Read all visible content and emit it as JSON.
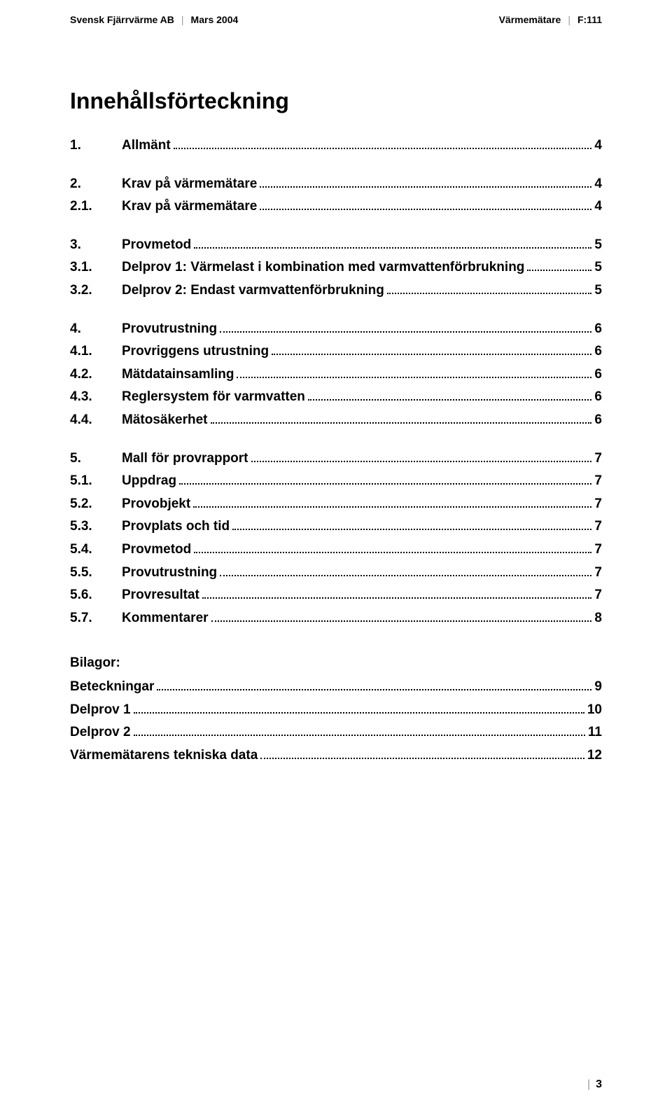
{
  "header": {
    "left_company": "Svensk Fjärrvärme AB",
    "left_date": "Mars 2004",
    "right_section": "Värmemätare",
    "right_code": "F:111"
  },
  "title": "Innehållsförteckning",
  "toc_groups": [
    [
      {
        "num": "1.",
        "label": "Allmänt",
        "page": "4"
      }
    ],
    [
      {
        "num": "2.",
        "label": "Krav på värmemätare",
        "page": "4"
      },
      {
        "num": "2.1.",
        "label": "Krav på värmemätare",
        "page": "4"
      }
    ],
    [
      {
        "num": "3.",
        "label": "Provmetod",
        "page": "5"
      },
      {
        "num": "3.1.",
        "label": "Delprov 1: Värmelast i kombination med varmvattenförbrukning",
        "page": "5"
      },
      {
        "num": "3.2.",
        "label": "Delprov 2: Endast varmvattenförbrukning",
        "page": "5"
      }
    ],
    [
      {
        "num": "4.",
        "label": "Provutrustning",
        "page": "6"
      },
      {
        "num": "4.1.",
        "label": "Provriggens utrustning",
        "page": "6"
      },
      {
        "num": "4.2.",
        "label": "Mätdatainsamling",
        "page": "6"
      },
      {
        "num": "4.3.",
        "label": "Reglersystem för varmvatten",
        "page": "6"
      },
      {
        "num": "4.4.",
        "label": "Mätosäkerhet",
        "page": "6"
      }
    ],
    [
      {
        "num": "5.",
        "label": "Mall för provrapport",
        "page": "7"
      },
      {
        "num": "5.1.",
        "label": "Uppdrag",
        "page": "7"
      },
      {
        "num": "5.2.",
        "label": "Provobjekt",
        "page": "7"
      },
      {
        "num": "5.3.",
        "label": "Provplats och tid",
        "page": "7"
      },
      {
        "num": "5.4.",
        "label": "Provmetod",
        "page": "7"
      },
      {
        "num": "5.5.",
        "label": "Provutrustning",
        "page": "7"
      },
      {
        "num": "5.6.",
        "label": "Provresultat",
        "page": "7"
      },
      {
        "num": "5.7.",
        "label": "Kommentarer",
        "page": "8"
      }
    ]
  ],
  "bilagor": {
    "title": "Bilagor:",
    "items": [
      {
        "label": "Beteckningar",
        "page": "9"
      },
      {
        "label": "Delprov 1",
        "page": "10"
      },
      {
        "label": "Delprov 2",
        "page": "11"
      },
      {
        "label": "Värmemätarens tekniska data",
        "page": "12"
      }
    ]
  },
  "footer_page": "3"
}
